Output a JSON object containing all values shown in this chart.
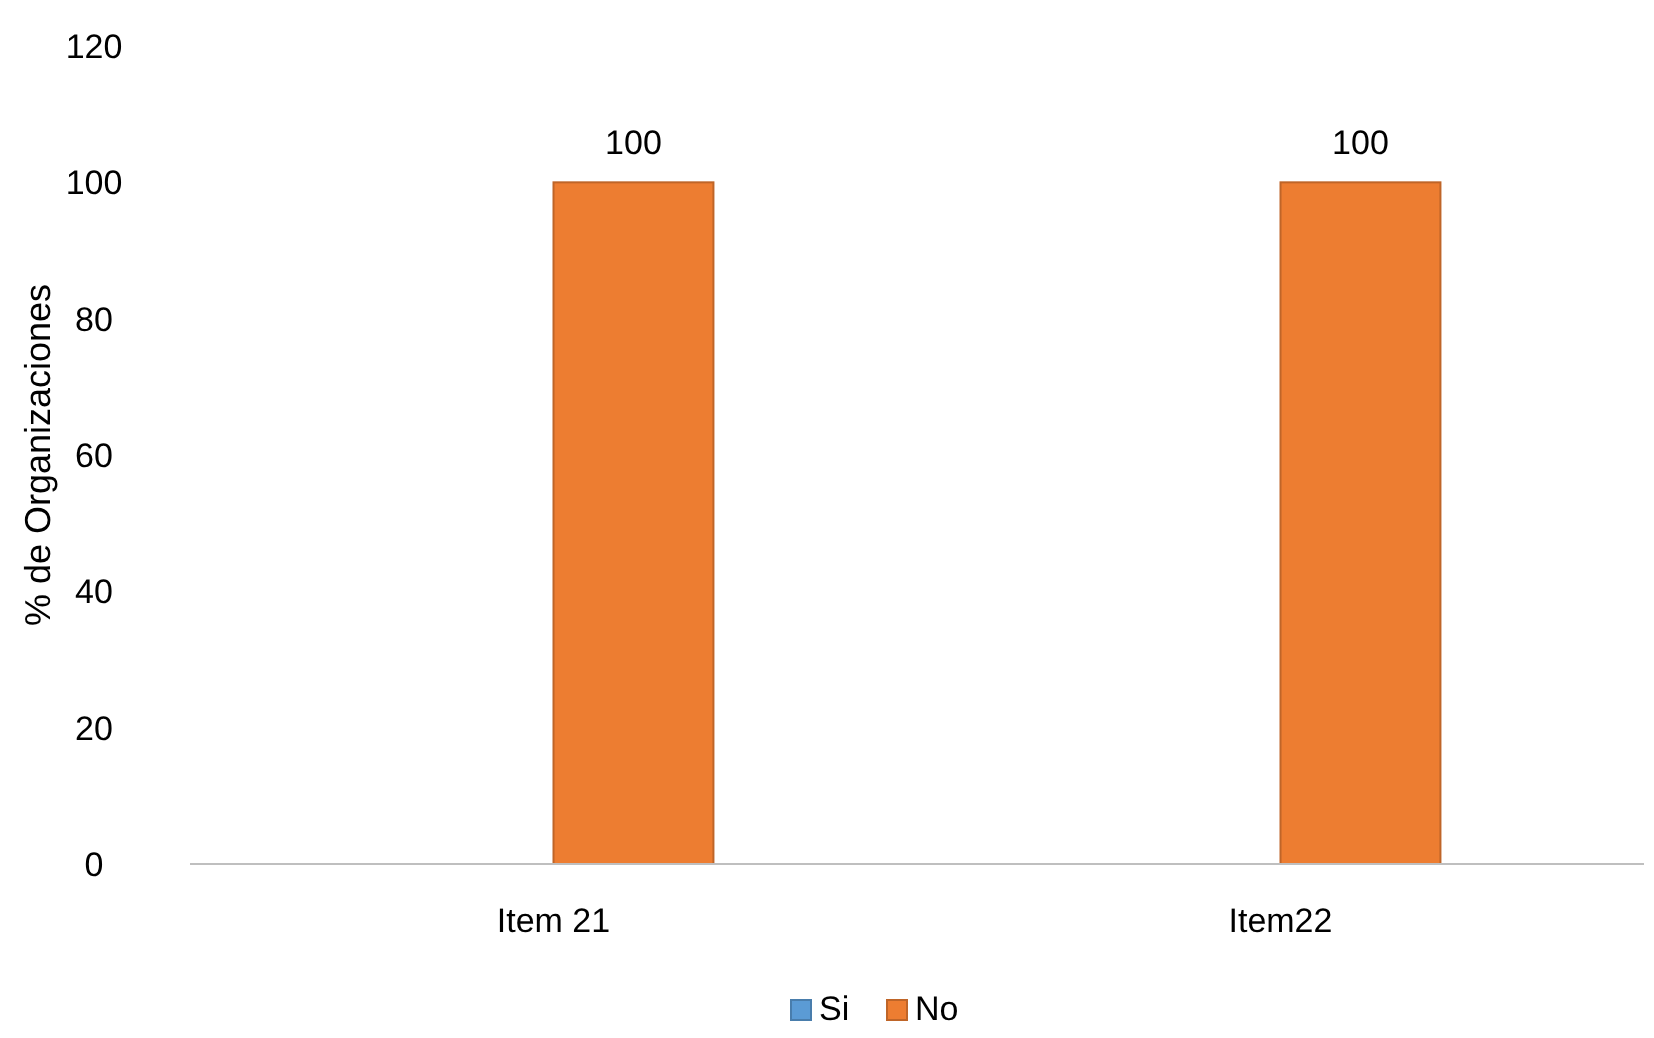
{
  "chart_data": {
    "type": "bar",
    "ylabel": "% de Organizaciones",
    "categories": [
      "Item 21",
      "Item22"
    ],
    "series": [
      {
        "name": "Si",
        "color": "#5b9bd5",
        "values": [
          0,
          0
        ],
        "value_labels": [
          null,
          null
        ]
      },
      {
        "name": "No",
        "color": "#ed7d31",
        "values": [
          100,
          100
        ],
        "value_labels": [
          "100",
          "100"
        ]
      }
    ],
    "ylim": [
      0,
      120
    ],
    "yticks": [
      0,
      20,
      40,
      60,
      80,
      100,
      120
    ],
    "grid": false,
    "legend": "bottom"
  }
}
